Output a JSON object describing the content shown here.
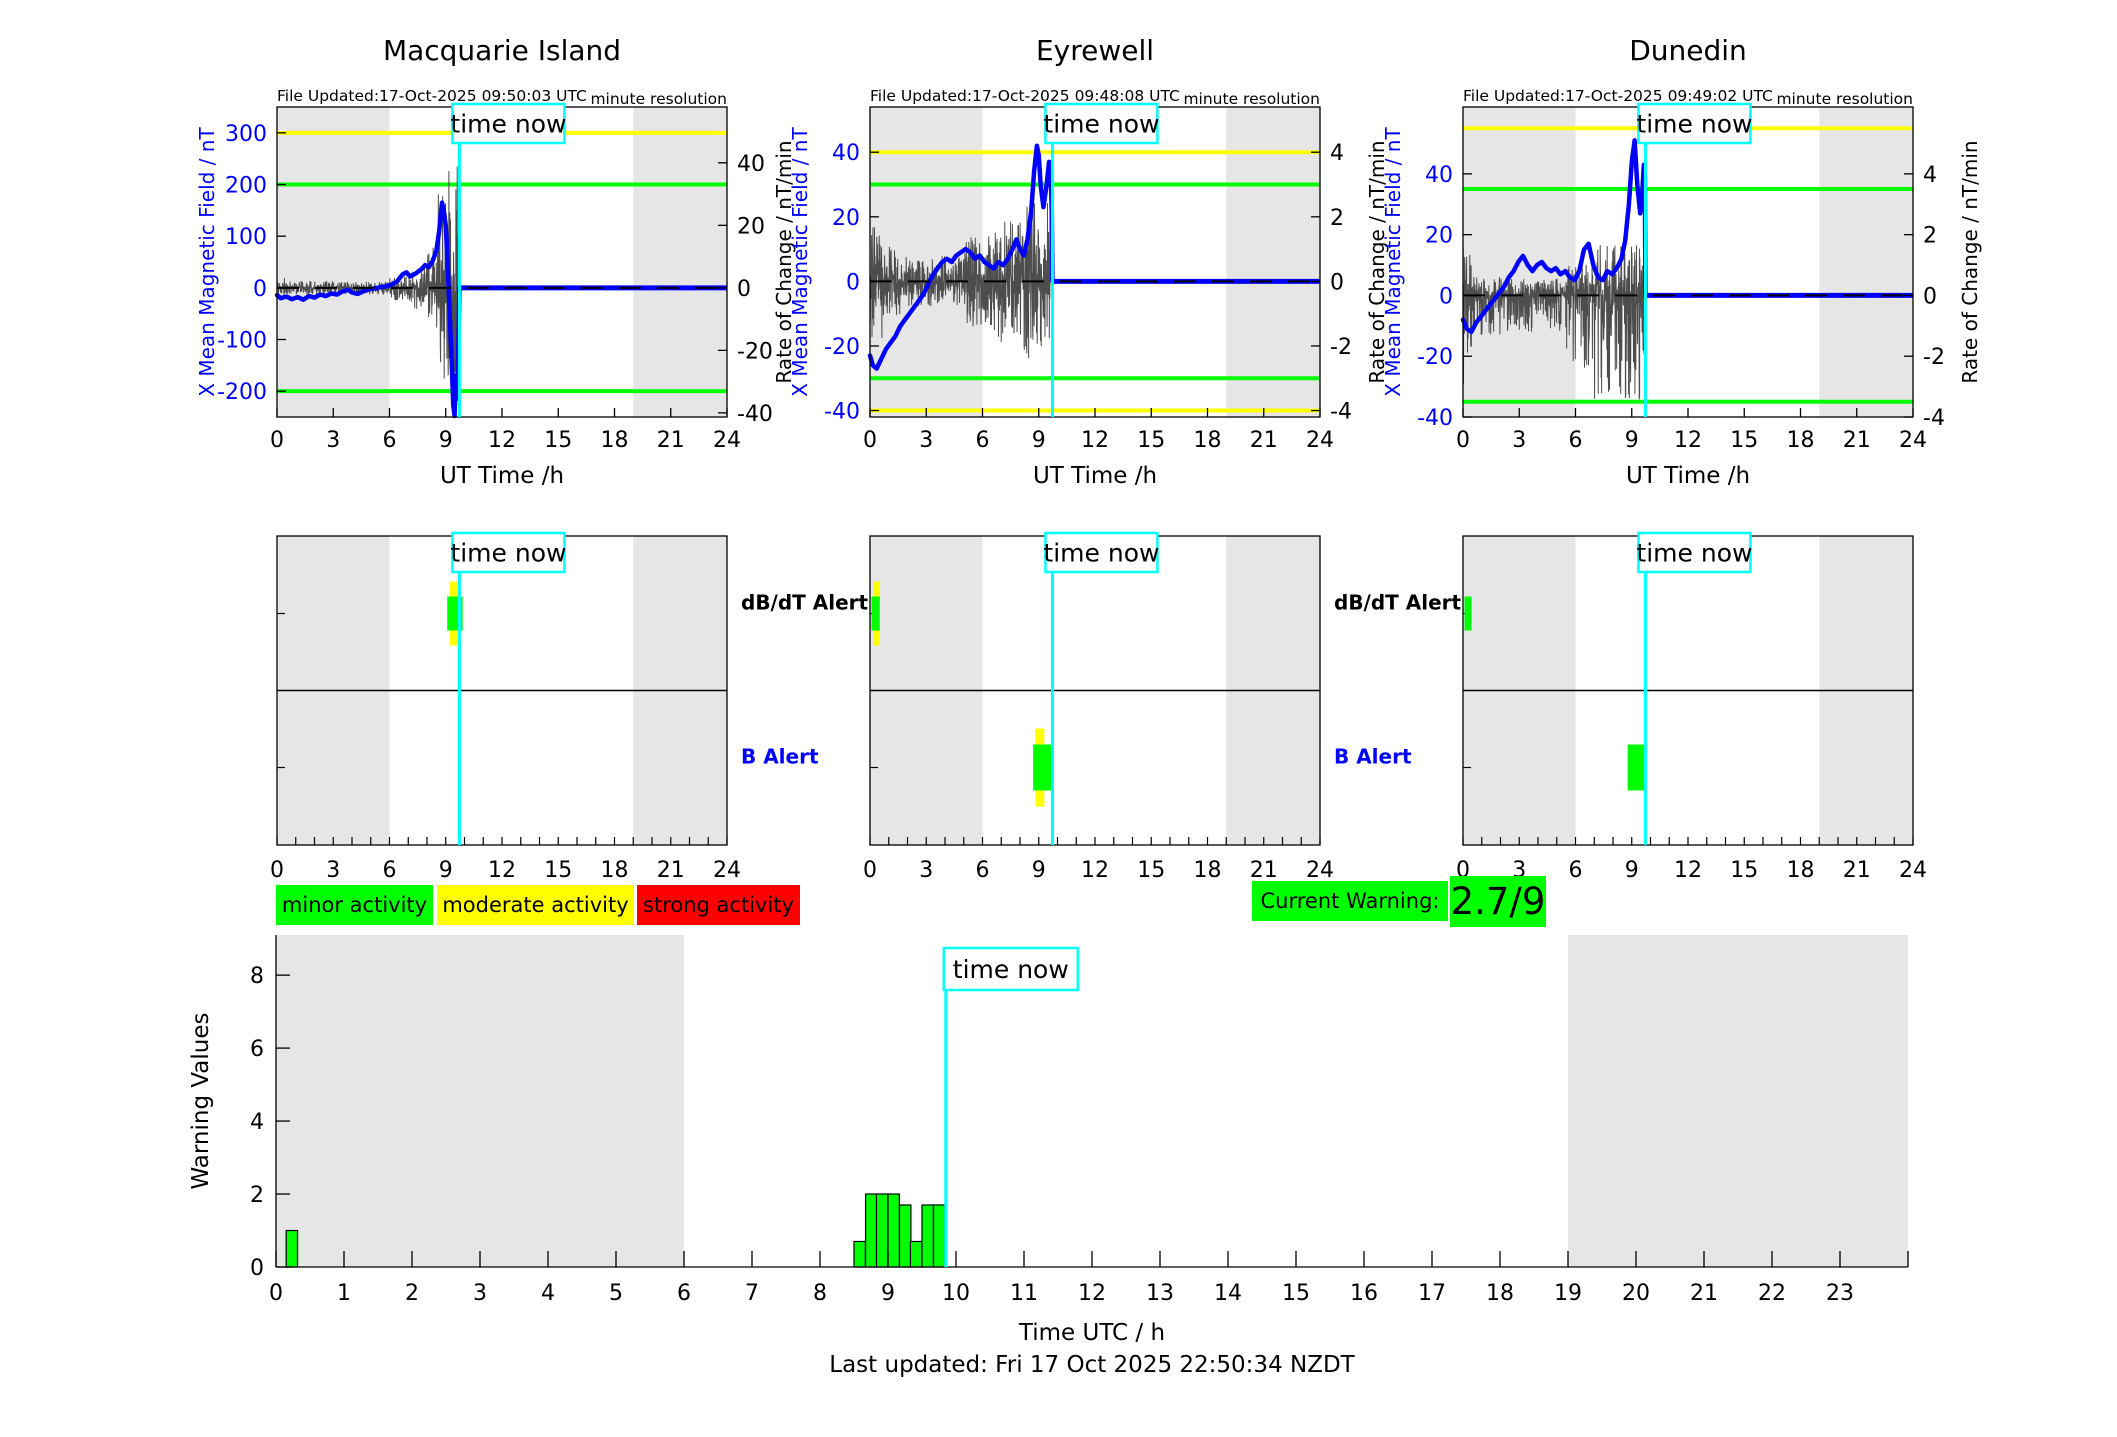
{
  "colors": {
    "blue": "#0000ff",
    "noise": "#4d4d4d",
    "yellow": "#ffff00",
    "green": "#00ff00",
    "red": "#ff0000",
    "cyan": "#00ffff",
    "shade": "#e6e6e6",
    "black": "#000000"
  },
  "time_now_label": "time now",
  "alert_labels": {
    "db_dt": "dB/dT Alert",
    "b": "B Alert"
  },
  "legend": {
    "items": [
      {
        "label": "minor activity",
        "color": "#00ff00"
      },
      {
        "label": "moderate activity",
        "color": "#ffff00"
      },
      {
        "label": "strong activity",
        "color": "#ff0000"
      }
    ]
  },
  "current_warning": {
    "label": "Current Warning:",
    "value": "2.7/9",
    "color": "#00ff00"
  },
  "footer": "Last updated: Fri 17 Oct 2025 22:50:34 NZDT",
  "chart_data": {
    "stations": [
      {
        "title": "Macquarie Island",
        "file_updated": "File Updated:17-Oct-2025 09:50:03 UTC",
        "resolution_note": "minute resolution",
        "type": "line",
        "x_axis": {
          "label": "UT Time /h",
          "lim": [
            0,
            24
          ],
          "major_ticks": [
            0,
            3,
            6,
            9,
            12,
            15,
            18,
            21,
            24
          ]
        },
        "left_axis": {
          "label": "X Mean Magnetic Field / nT",
          "ticks": [
            300,
            200,
            100,
            0,
            -100,
            -200
          ],
          "lim": [
            -250,
            350
          ]
        },
        "right_axis": {
          "label": "Rate of Change / nT/min",
          "ticks": [
            40,
            20,
            0,
            -20,
            -40
          ],
          "left_units_per_right_unit": 6.05
        },
        "thresholds": {
          "yellow": [
            300
          ],
          "green": [
            200,
            -200
          ]
        },
        "shading": [
          [
            0,
            6
          ],
          [
            19,
            24
          ]
        ],
        "time_now": 9.73,
        "flat_value_after_now": 0,
        "mean_field_series": [
          [
            0,
            -14
          ],
          [
            0.2,
            -20
          ],
          [
            0.5,
            -17
          ],
          [
            0.8,
            -22
          ],
          [
            1.1,
            -18
          ],
          [
            1.4,
            -23
          ],
          [
            1.7,
            -16
          ],
          [
            2.0,
            -19
          ],
          [
            2.3,
            -13
          ],
          [
            2.6,
            -16
          ],
          [
            2.9,
            -11
          ],
          [
            3.2,
            -13
          ],
          [
            3.5,
            -7
          ],
          [
            3.8,
            -4
          ],
          [
            4.0,
            -9
          ],
          [
            4.3,
            -12
          ],
          [
            4.6,
            -7
          ],
          [
            4.9,
            -3
          ],
          [
            5.2,
            -1
          ],
          [
            5.5,
            1
          ],
          [
            5.8,
            3
          ],
          [
            6.1,
            6
          ],
          [
            6.4,
            12
          ],
          [
            6.7,
            26
          ],
          [
            6.9,
            30
          ],
          [
            7.1,
            22
          ],
          [
            7.4,
            28
          ],
          [
            7.7,
            36
          ],
          [
            7.9,
            44
          ],
          [
            8.1,
            40
          ],
          [
            8.3,
            52
          ],
          [
            8.5,
            72
          ],
          [
            8.65,
            110
          ],
          [
            8.8,
            165
          ],
          [
            8.9,
            148
          ],
          [
            9.0,
            120
          ],
          [
            9.1,
            45
          ],
          [
            9.2,
            -40
          ],
          [
            9.3,
            -130
          ],
          [
            9.4,
            -228
          ],
          [
            9.47,
            -252
          ],
          [
            9.53,
            -170
          ],
          [
            9.6,
            -215
          ],
          [
            9.67,
            -120
          ],
          [
            9.7,
            -60
          ],
          [
            9.73,
            0
          ]
        ],
        "rate_noise": {
          "seed": 11,
          "step": 0.012,
          "pos_scale": 1,
          "neg_scale": 1,
          "segments": [
            [
              0.5,
              3.5
            ],
            [
              6,
              2.2
            ],
            [
              7,
              4
            ],
            [
              8,
              7
            ],
            [
              8.6,
              13
            ],
            [
              9.05,
              30
            ],
            [
              9.78,
              40
            ]
          ]
        },
        "alerts": {
          "db_dt": {
            "green": [
              9.08,
              9.9
            ],
            "yellow": [
              9.22,
              9.6
            ]
          },
          "b": null
        }
      },
      {
        "title": "Eyrewell",
        "file_updated": "File Updated:17-Oct-2025 09:48:08 UTC",
        "resolution_note": "minute resolution",
        "type": "line",
        "x_axis": {
          "label": "UT Time /h",
          "lim": [
            0,
            24
          ],
          "major_ticks": [
            0,
            3,
            6,
            9,
            12,
            15,
            18,
            21,
            24
          ]
        },
        "left_axis": {
          "label": "X Mean Magnetic Field / nT",
          "ticks": [
            40,
            20,
            0,
            -20,
            -40
          ],
          "lim": [
            -42,
            54
          ]
        },
        "right_axis": {
          "label": "Rate of Change / nT/min",
          "ticks": [
            4,
            2,
            0,
            -2,
            -4
          ],
          "left_units_per_right_unit": 10
        },
        "thresholds": {
          "yellow": [
            40,
            -40
          ],
          "green": [
            30,
            -30
          ]
        },
        "shading": [
          [
            0,
            6
          ],
          [
            19,
            24
          ]
        ],
        "time_now": 9.73,
        "flat_value_after_now": 0,
        "mean_field_series": [
          [
            0,
            -23
          ],
          [
            0.15,
            -26
          ],
          [
            0.35,
            -27
          ],
          [
            0.6,
            -24
          ],
          [
            0.85,
            -21
          ],
          [
            1.1,
            -19
          ],
          [
            1.35,
            -17
          ],
          [
            1.6,
            -14
          ],
          [
            1.85,
            -12
          ],
          [
            2.1,
            -10
          ],
          [
            2.35,
            -8
          ],
          [
            2.6,
            -6
          ],
          [
            2.85,
            -4
          ],
          [
            3.1,
            -1
          ],
          [
            3.35,
            2
          ],
          [
            3.6,
            4
          ],
          [
            3.85,
            6
          ],
          [
            4.1,
            7
          ],
          [
            4.35,
            6
          ],
          [
            4.6,
            8
          ],
          [
            4.85,
            9
          ],
          [
            5.1,
            10
          ],
          [
            5.35,
            9
          ],
          [
            5.6,
            7
          ],
          [
            5.85,
            8
          ],
          [
            6.1,
            6
          ],
          [
            6.35,
            5
          ],
          [
            6.6,
            4
          ],
          [
            6.85,
            6
          ],
          [
            7.1,
            5
          ],
          [
            7.35,
            7
          ],
          [
            7.6,
            10
          ],
          [
            7.8,
            13
          ],
          [
            8.0,
            10
          ],
          [
            8.2,
            8
          ],
          [
            8.4,
            13
          ],
          [
            8.6,
            22
          ],
          [
            8.75,
            34
          ],
          [
            8.9,
            42
          ],
          [
            9.0,
            39
          ],
          [
            9.1,
            30
          ],
          [
            9.25,
            23
          ],
          [
            9.4,
            29
          ],
          [
            9.55,
            37
          ],
          [
            9.65,
            32
          ],
          [
            9.7,
            20
          ],
          [
            9.73,
            0
          ]
        ],
        "rate_noise": {
          "seed": 23,
          "step": 0.012,
          "pos_scale": 1,
          "neg_scale": 1,
          "segments": [
            [
              0.7,
              1.8
            ],
            [
              1.6,
              1.1
            ],
            [
              5,
              0.8
            ],
            [
              6.6,
              1.4
            ],
            [
              8.2,
              1.9
            ],
            [
              9.78,
              2.5
            ]
          ]
        },
        "alerts": {
          "db_dt": {
            "green": [
              0.08,
              0.52
            ],
            "yellow": [
              0.16,
              0.44
            ]
          },
          "b": {
            "green": [
              8.7,
              9.78
            ],
            "yellow": [
              8.82,
              9.3
            ]
          }
        }
      },
      {
        "title": "Dunedin",
        "file_updated": "File Updated:17-Oct-2025 09:49:02 UTC",
        "resolution_note": "minute resolution",
        "type": "line",
        "x_axis": {
          "label": "UT Time /h",
          "lim": [
            0,
            24
          ],
          "major_ticks": [
            0,
            3,
            6,
            9,
            12,
            15,
            18,
            21,
            24
          ]
        },
        "left_axis": {
          "label": "X Mean Magnetic Field / nT",
          "ticks": [
            40,
            20,
            0,
            -20,
            -40
          ],
          "lim": [
            -40,
            62
          ]
        },
        "right_axis": {
          "label": "Rate of Change / nT/min",
          "ticks": [
            4,
            2,
            0,
            -2,
            -4
          ],
          "left_units_per_right_unit": 10
        },
        "thresholds": {
          "yellow": [
            55
          ],
          "green": [
            35,
            -35
          ]
        },
        "shading": [
          [
            0,
            6
          ],
          [
            19,
            24
          ]
        ],
        "time_now": 9.73,
        "flat_value_after_now": 0,
        "mean_field_series": [
          [
            0,
            -8
          ],
          [
            0.2,
            -11
          ],
          [
            0.45,
            -12
          ],
          [
            0.7,
            -9
          ],
          [
            0.95,
            -7
          ],
          [
            1.2,
            -5
          ],
          [
            1.45,
            -3
          ],
          [
            1.7,
            -1
          ],
          [
            1.95,
            1
          ],
          [
            2.2,
            3
          ],
          [
            2.45,
            6
          ],
          [
            2.7,
            8
          ],
          [
            2.95,
            11
          ],
          [
            3.2,
            13
          ],
          [
            3.45,
            10
          ],
          [
            3.7,
            8
          ],
          [
            3.95,
            10
          ],
          [
            4.2,
            11
          ],
          [
            4.45,
            9
          ],
          [
            4.7,
            8
          ],
          [
            4.95,
            9
          ],
          [
            5.2,
            7
          ],
          [
            5.45,
            8
          ],
          [
            5.7,
            6
          ],
          [
            5.95,
            5
          ],
          [
            6.2,
            8
          ],
          [
            6.45,
            15
          ],
          [
            6.7,
            17
          ],
          [
            6.95,
            10
          ],
          [
            7.2,
            6
          ],
          [
            7.45,
            5
          ],
          [
            7.7,
            8
          ],
          [
            7.95,
            7
          ],
          [
            8.2,
            9
          ],
          [
            8.45,
            12
          ],
          [
            8.65,
            18
          ],
          [
            8.85,
            30
          ],
          [
            9.0,
            44
          ],
          [
            9.15,
            51
          ],
          [
            9.3,
            36
          ],
          [
            9.45,
            27
          ],
          [
            9.55,
            33
          ],
          [
            9.65,
            43
          ],
          [
            9.7,
            38
          ],
          [
            9.73,
            0
          ]
        ],
        "rate_noise": {
          "seed": 37,
          "step": 0.012,
          "pos_scale": 0.7,
          "neg_scale": 1.5,
          "segments": [
            [
              0.5,
              2.2
            ],
            [
              2,
              0.9
            ],
            [
              5.5,
              0.8
            ],
            [
              7,
              1.6
            ],
            [
              9.78,
              2.4
            ]
          ]
        },
        "alerts": {
          "db_dt": {
            "green": [
              0.08,
              0.45
            ],
            "yellow": null
          },
          "b": {
            "green": [
              8.78,
              9.78
            ],
            "yellow": null
          }
        }
      }
    ],
    "alert_panel": {
      "x_major_ticks": [
        0,
        3,
        6,
        9,
        12,
        15,
        18,
        21,
        24
      ],
      "shading": [
        [
          0,
          6
        ],
        [
          19,
          24
        ]
      ],
      "time_now": 9.73
    },
    "warning_chart": {
      "type": "bar",
      "title": "",
      "xlabel": "Time UTC / h",
      "ylabel": "Warning Values",
      "xlim": [
        0,
        24
      ],
      "ylim": [
        0,
        9.1
      ],
      "x_tick_labels": [
        0,
        1,
        2,
        3,
        4,
        5,
        6,
        7,
        8,
        9,
        10,
        11,
        12,
        13,
        14,
        15,
        16,
        17,
        18,
        19,
        20,
        21,
        22,
        23
      ],
      "y_ticks": [
        0,
        2,
        4,
        6,
        8
      ],
      "shading": [
        [
          0,
          6
        ],
        [
          19,
          24
        ]
      ],
      "time_now": 9.85,
      "bar_width_hours": 0.167,
      "bars": [
        {
          "t": 0.15,
          "value": 1.0
        },
        {
          "t": 8.5,
          "value": 0.7
        },
        {
          "t": 8.67,
          "value": 2.0
        },
        {
          "t": 8.83,
          "value": 2.0
        },
        {
          "t": 9.0,
          "value": 2.0
        },
        {
          "t": 9.17,
          "value": 1.7
        },
        {
          "t": 9.33,
          "value": 0.7
        },
        {
          "t": 9.5,
          "value": 1.7
        },
        {
          "t": 9.67,
          "value": 1.7
        }
      ]
    }
  }
}
